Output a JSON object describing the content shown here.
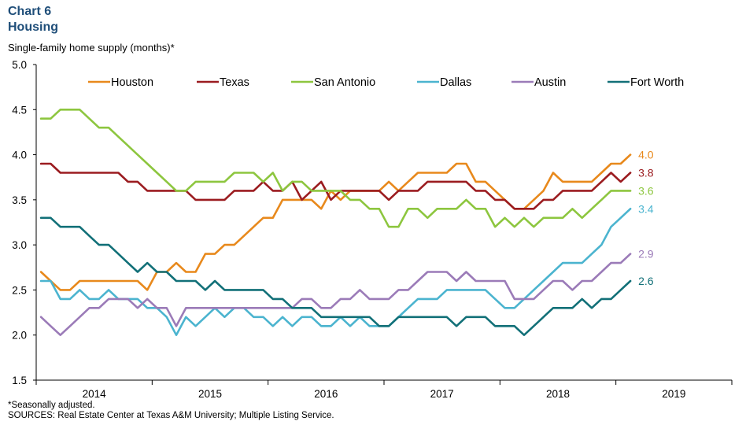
{
  "header": {
    "chart_number": "Chart 6",
    "title": "Housing",
    "subtitle": "Single-family home supply (months)*"
  },
  "footer": {
    "note": "*Seasonally adjusted.",
    "sources": "SOURCES: Real Estate Center at Texas A&M University; Multiple Listing Service."
  },
  "chart_data": {
    "type": "line",
    "title": "Housing",
    "ylabel": "Single-family home supply (months)*",
    "ylim": [
      1.5,
      5.0
    ],
    "yticks": [
      1.5,
      2.0,
      2.5,
      3.0,
      3.5,
      4.0,
      4.5,
      5.0
    ],
    "x_start": "2014-01",
    "x_end": "2019-12",
    "x_category_labels": [
      "2014",
      "2015",
      "2016",
      "2017",
      "2018",
      "2019"
    ],
    "grid": false,
    "legend_position": "top",
    "series": [
      {
        "name": "Houston",
        "color": "#e8891c",
        "end_label": "4.0",
        "values": [
          2.7,
          2.6,
          2.5,
          2.5,
          2.6,
          2.6,
          2.6,
          2.6,
          2.6,
          2.6,
          2.6,
          2.5,
          2.7,
          2.7,
          2.8,
          2.7,
          2.7,
          2.9,
          2.9,
          3.0,
          3.0,
          3.1,
          3.2,
          3.3,
          3.3,
          3.5,
          3.5,
          3.5,
          3.5,
          3.4,
          3.6,
          3.5,
          3.6,
          3.6,
          3.6,
          3.6,
          3.7,
          3.6,
          3.7,
          3.8,
          3.8,
          3.8,
          3.8,
          3.9,
          3.9,
          3.7,
          3.7,
          3.6,
          3.5,
          3.4,
          3.4,
          3.5,
          3.6,
          3.8,
          3.7,
          3.7,
          3.7,
          3.7,
          3.8,
          3.9,
          3.9,
          4.0
        ]
      },
      {
        "name": "Texas",
        "color": "#9b1c20",
        "end_label": "3.8",
        "values": [
          3.9,
          3.9,
          3.8,
          3.8,
          3.8,
          3.8,
          3.8,
          3.8,
          3.8,
          3.7,
          3.7,
          3.6,
          3.6,
          3.6,
          3.6,
          3.6,
          3.5,
          3.5,
          3.5,
          3.5,
          3.6,
          3.6,
          3.6,
          3.7,
          3.6,
          3.6,
          3.7,
          3.5,
          3.6,
          3.7,
          3.5,
          3.6,
          3.6,
          3.6,
          3.6,
          3.6,
          3.5,
          3.6,
          3.6,
          3.6,
          3.7,
          3.7,
          3.7,
          3.7,
          3.7,
          3.6,
          3.6,
          3.5,
          3.5,
          3.4,
          3.4,
          3.4,
          3.5,
          3.5,
          3.6,
          3.6,
          3.6,
          3.6,
          3.7,
          3.8,
          3.7,
          3.8
        ]
      },
      {
        "name": "San Antonio",
        "color": "#8dc63f",
        "end_label": "3.6",
        "values": [
          4.4,
          4.4,
          4.5,
          4.5,
          4.5,
          4.4,
          4.3,
          4.3,
          4.2,
          4.1,
          4.0,
          3.9,
          3.8,
          3.7,
          3.6,
          3.6,
          3.7,
          3.7,
          3.7,
          3.7,
          3.8,
          3.8,
          3.8,
          3.7,
          3.8,
          3.6,
          3.7,
          3.7,
          3.6,
          3.6,
          3.6,
          3.6,
          3.5,
          3.5,
          3.4,
          3.4,
          3.2,
          3.2,
          3.4,
          3.4,
          3.3,
          3.4,
          3.4,
          3.4,
          3.5,
          3.4,
          3.4,
          3.2,
          3.3,
          3.2,
          3.3,
          3.2,
          3.3,
          3.3,
          3.3,
          3.4,
          3.3,
          3.4,
          3.5,
          3.6,
          3.6,
          3.6
        ]
      },
      {
        "name": "Dallas",
        "color": "#4bb4cf",
        "end_label": "3.4",
        "values": [
          2.6,
          2.6,
          2.4,
          2.4,
          2.5,
          2.4,
          2.4,
          2.5,
          2.4,
          2.4,
          2.4,
          2.3,
          2.3,
          2.2,
          2.0,
          2.2,
          2.1,
          2.2,
          2.3,
          2.2,
          2.3,
          2.3,
          2.2,
          2.2,
          2.1,
          2.2,
          2.1,
          2.2,
          2.2,
          2.1,
          2.1,
          2.2,
          2.1,
          2.2,
          2.1,
          2.1,
          2.1,
          2.2,
          2.3,
          2.4,
          2.4,
          2.4,
          2.5,
          2.5,
          2.5,
          2.5,
          2.5,
          2.4,
          2.3,
          2.3,
          2.4,
          2.5,
          2.6,
          2.7,
          2.8,
          2.8,
          2.8,
          2.9,
          3.0,
          3.2,
          3.3,
          3.4
        ]
      },
      {
        "name": "Austin",
        "color": "#9b7bb8",
        "end_label": "2.9",
        "values": [
          2.2,
          2.1,
          2.0,
          2.1,
          2.2,
          2.3,
          2.3,
          2.4,
          2.4,
          2.4,
          2.3,
          2.4,
          2.3,
          2.3,
          2.1,
          2.3,
          2.3,
          2.3,
          2.3,
          2.3,
          2.3,
          2.3,
          2.3,
          2.3,
          2.3,
          2.3,
          2.3,
          2.4,
          2.4,
          2.3,
          2.3,
          2.4,
          2.4,
          2.5,
          2.4,
          2.4,
          2.4,
          2.5,
          2.5,
          2.6,
          2.7,
          2.7,
          2.7,
          2.6,
          2.7,
          2.6,
          2.6,
          2.6,
          2.6,
          2.4,
          2.4,
          2.4,
          2.5,
          2.6,
          2.6,
          2.5,
          2.6,
          2.6,
          2.7,
          2.8,
          2.8,
          2.9
        ]
      },
      {
        "name": "Fort Worth",
        "color": "#127078",
        "end_label": "2.6",
        "values": [
          3.3,
          3.3,
          3.2,
          3.2,
          3.2,
          3.1,
          3.0,
          3.0,
          2.9,
          2.8,
          2.7,
          2.8,
          2.7,
          2.7,
          2.6,
          2.6,
          2.6,
          2.5,
          2.6,
          2.5,
          2.5,
          2.5,
          2.5,
          2.5,
          2.4,
          2.4,
          2.3,
          2.3,
          2.3,
          2.2,
          2.2,
          2.2,
          2.2,
          2.2,
          2.2,
          2.1,
          2.1,
          2.2,
          2.2,
          2.2,
          2.2,
          2.2,
          2.2,
          2.1,
          2.2,
          2.2,
          2.2,
          2.1,
          2.1,
          2.1,
          2.0,
          2.1,
          2.2,
          2.3,
          2.3,
          2.3,
          2.4,
          2.3,
          2.4,
          2.4,
          2.5,
          2.6
        ]
      }
    ]
  }
}
